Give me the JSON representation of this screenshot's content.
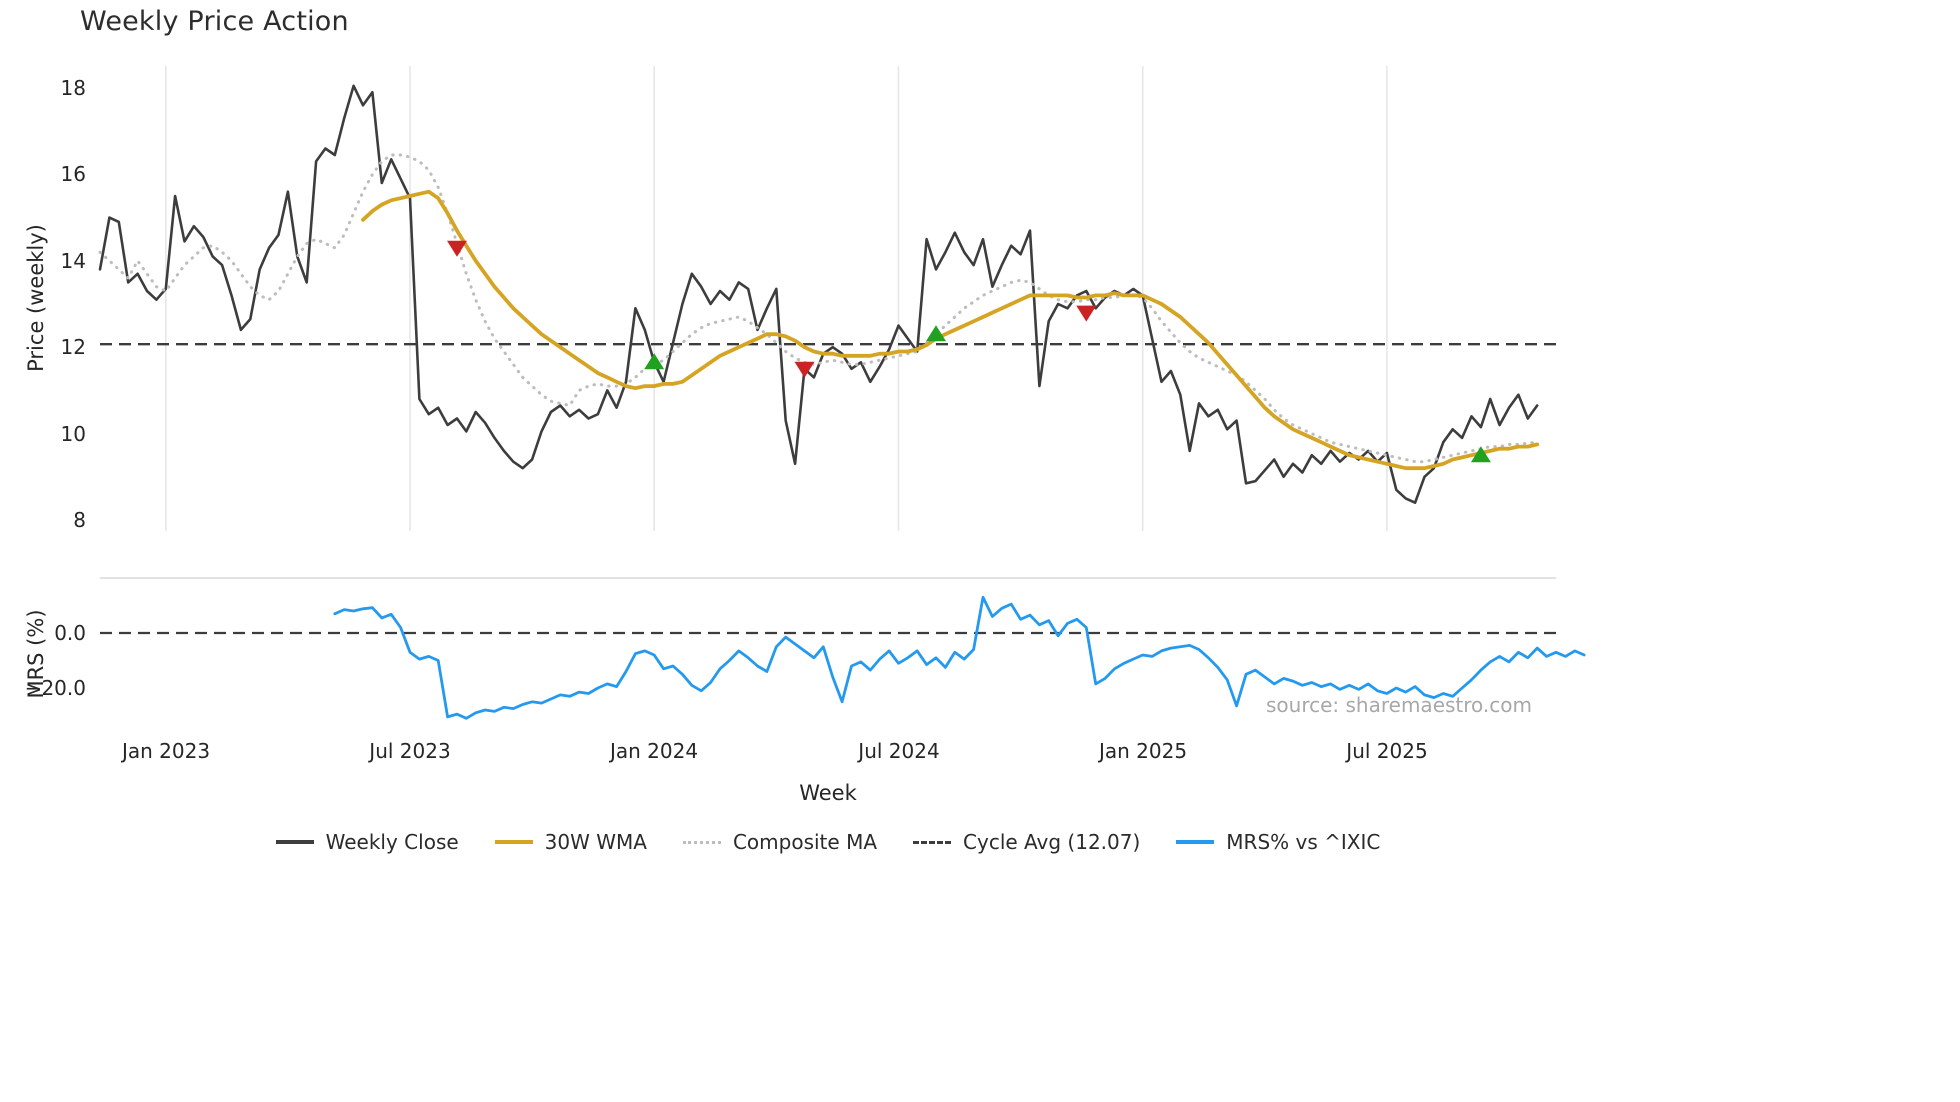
{
  "title": "Weekly Price Action",
  "axes": {
    "price": {
      "label": "Price (weekly)",
      "ticks": [
        "18",
        "16",
        "14",
        "12",
        "10",
        "8"
      ]
    },
    "mrs": {
      "label": "MRS (%)",
      "ticks": [
        "0.0",
        "−20.0"
      ]
    },
    "x": {
      "label": "Week",
      "ticks": [
        "Jan 2023",
        "Jul 2023",
        "Jan 2024",
        "Jul 2024",
        "Jan 2025",
        "Jul 2025"
      ],
      "tick_weeks": [
        7,
        33,
        59,
        85,
        111,
        137
      ]
    }
  },
  "legend": [
    {
      "label": "Weekly Close",
      "color": "#3d3d3d",
      "style": "solid"
    },
    {
      "label": "30W WMA",
      "color": "#d6a423",
      "style": "solid"
    },
    {
      "label": "Composite MA",
      "color": "#bdbdbd",
      "style": "dotted"
    },
    {
      "label": "Cycle Avg (12.07)",
      "color": "#3d3d3d",
      "style": "dashed"
    },
    {
      "label": "MRS% vs ^IXIC",
      "color": "#2499f0",
      "style": "solid"
    }
  ],
  "source": "source: sharemaestro.com",
  "chart_data": {
    "type": "line",
    "title": "Weekly Price Action",
    "xlabel": "Week",
    "x_axis": {
      "unit": "week_index",
      "domain": [
        0,
        155
      ],
      "tick_weeks": [
        7,
        33,
        59,
        85,
        111,
        137
      ],
      "tick_labels": [
        "Jan 2023",
        "Jul 2023",
        "Jan 2024",
        "Jul 2024",
        "Jan 2025",
        "Jul 2025"
      ]
    },
    "price_axis": {
      "label": "Price (weekly)",
      "tick_values": [
        18,
        16,
        14,
        12,
        10,
        8
      ],
      "ylim": [
        7.75,
        18.5
      ]
    },
    "mrs_axis": {
      "label": "MRS (%)",
      "tick_values": [
        0,
        -20
      ],
      "ylim": [
        -35.6,
        20
      ]
    },
    "cycle_avg": 12.07,
    "grid": "vertical-only",
    "legend_position": "bottom-center",
    "series": [
      {
        "id": "weekly-close-line",
        "name": "Weekly Close",
        "panel": "price",
        "color": "#3d3d3d",
        "style": "solid",
        "width": 2.6,
        "start_week": 0,
        "values": [
          13.8,
          15.0,
          14.9,
          13.5,
          13.7,
          13.3,
          13.1,
          13.35,
          15.5,
          14.45,
          14.8,
          14.55,
          14.1,
          13.9,
          13.2,
          12.4,
          12.65,
          13.8,
          14.3,
          14.6,
          15.6,
          14.1,
          13.5,
          16.3,
          16.6,
          16.45,
          17.3,
          18.05,
          17.6,
          17.9,
          15.8,
          16.35,
          15.9,
          15.45,
          10.8,
          10.45,
          10.6,
          10.2,
          10.35,
          10.05,
          10.5,
          10.25,
          9.9,
          9.6,
          9.35,
          9.2,
          9.4,
          10.05,
          10.5,
          10.65,
          10.4,
          10.55,
          10.35,
          10.45,
          11.0,
          10.6,
          11.2,
          12.9,
          12.4,
          11.65,
          11.2,
          12.1,
          13.0,
          13.7,
          13.4,
          13.0,
          13.3,
          13.1,
          13.5,
          13.35,
          12.4,
          12.9,
          13.35,
          10.3,
          9.3,
          11.5,
          11.3,
          11.85,
          12.0,
          11.85,
          11.5,
          11.65,
          11.2,
          11.55,
          11.95,
          12.5,
          12.2,
          11.9,
          14.5,
          13.8,
          14.2,
          14.65,
          14.2,
          13.9,
          14.5,
          13.4,
          13.9,
          14.35,
          14.15,
          14.7,
          11.1,
          12.6,
          13.0,
          12.9,
          13.2,
          13.3,
          12.9,
          13.15,
          13.3,
          13.2,
          13.35,
          13.2,
          12.2,
          11.2,
          11.45,
          10.9,
          9.6,
          10.7,
          10.4,
          10.55,
          10.1,
          10.3,
          8.85,
          8.9,
          9.15,
          9.4,
          9.0,
          9.3,
          9.1,
          9.5,
          9.3,
          9.6,
          9.35,
          9.55,
          9.4,
          9.6,
          9.35,
          9.55,
          8.7,
          8.5,
          8.4,
          9.0,
          9.2,
          9.8,
          10.1,
          9.9,
          10.4,
          10.15,
          10.8,
          10.2,
          10.6,
          10.9,
          10.35,
          10.65
        ]
      },
      {
        "id": "composite-ma-line",
        "name": "Composite MA",
        "panel": "price",
        "color": "#bdbdbd",
        "style": "dotted",
        "width": 3.0,
        "start_week": 0,
        "values": [
          14.2,
          14.0,
          13.8,
          13.6,
          14.0,
          13.7,
          13.4,
          13.3,
          13.6,
          13.9,
          14.1,
          14.3,
          14.35,
          14.2,
          14.0,
          13.7,
          13.4,
          13.2,
          13.1,
          13.3,
          13.7,
          14.1,
          14.4,
          14.5,
          14.4,
          14.3,
          14.6,
          15.1,
          15.6,
          16.0,
          16.3,
          16.45,
          16.45,
          16.4,
          16.3,
          16.1,
          15.7,
          15.1,
          14.4,
          13.7,
          13.1,
          12.6,
          12.2,
          11.9,
          11.6,
          11.3,
          11.1,
          10.9,
          10.75,
          10.7,
          10.65,
          11.0,
          11.1,
          11.15,
          11.1,
          11.1,
          11.15,
          11.3,
          11.5,
          11.6,
          11.7,
          11.9,
          12.1,
          12.3,
          12.45,
          12.55,
          12.6,
          12.65,
          12.7,
          12.6,
          12.45,
          12.3,
          12.1,
          11.9,
          11.75,
          11.65,
          11.6,
          11.65,
          11.7,
          11.65,
          11.6,
          11.6,
          11.65,
          11.7,
          11.75,
          11.8,
          11.85,
          11.9,
          12.1,
          12.3,
          12.5,
          12.7,
          12.9,
          13.05,
          13.2,
          13.3,
          13.4,
          13.5,
          13.55,
          13.5,
          13.35,
          13.2,
          13.1,
          13.05,
          13.05,
          13.1,
          13.1,
          13.15,
          13.15,
          13.2,
          13.2,
          13.15,
          12.9,
          12.6,
          12.35,
          12.1,
          11.9,
          11.75,
          11.65,
          11.55,
          11.45,
          11.35,
          11.2,
          11.0,
          10.8,
          10.55,
          10.35,
          10.2,
          10.1,
          10.0,
          9.9,
          9.8,
          9.75,
          9.7,
          9.65,
          9.6,
          9.55,
          9.5,
          9.45,
          9.4,
          9.35,
          9.35,
          9.4,
          9.45,
          9.5,
          9.55,
          9.6,
          9.65,
          9.7,
          9.7,
          9.75,
          9.75,
          9.78,
          9.8
        ]
      },
      {
        "id": "wma-30w-line",
        "name": "30W WMA",
        "panel": "price",
        "color": "#d6a423",
        "style": "solid",
        "width": 3.8,
        "start_week": 28,
        "values": [
          14.95,
          15.15,
          15.3,
          15.4,
          15.45,
          15.5,
          15.55,
          15.6,
          15.45,
          15.1,
          14.7,
          14.35,
          14.0,
          13.7,
          13.4,
          13.15,
          12.9,
          12.7,
          12.5,
          12.3,
          12.15,
          12.0,
          11.85,
          11.7,
          11.55,
          11.4,
          11.3,
          11.2,
          11.1,
          11.05,
          11.1,
          11.1,
          11.15,
          11.15,
          11.2,
          11.35,
          11.5,
          11.65,
          11.8,
          11.9,
          12.0,
          12.1,
          12.2,
          12.3,
          12.3,
          12.25,
          12.15,
          12.0,
          11.9,
          11.85,
          11.85,
          11.8,
          11.8,
          11.8,
          11.8,
          11.85,
          11.85,
          11.9,
          11.9,
          11.95,
          12.05,
          12.2,
          12.3,
          12.4,
          12.5,
          12.6,
          12.7,
          12.8,
          12.9,
          13.0,
          13.1,
          13.2,
          13.2,
          13.2,
          13.2,
          13.2,
          13.15,
          13.15,
          13.2,
          13.2,
          13.25,
          13.2,
          13.2,
          13.2,
          13.1,
          13.0,
          12.85,
          12.7,
          12.5,
          12.3,
          12.1,
          11.85,
          11.6,
          11.35,
          11.1,
          10.85,
          10.6,
          10.4,
          10.25,
          10.1,
          10.0,
          9.9,
          9.8,
          9.7,
          9.6,
          9.5,
          9.45,
          9.4,
          9.35,
          9.3,
          9.25,
          9.2,
          9.2,
          9.2,
          9.25,
          9.3,
          9.4,
          9.45,
          9.5,
          9.55,
          9.6,
          9.65,
          9.65,
          9.7,
          9.7,
          9.75
        ]
      },
      {
        "id": "mrs-line",
        "name": "MRS% vs ^IXIC",
        "panel": "mrs",
        "color": "#2499f0",
        "style": "solid",
        "width": 2.8,
        "start_week": 25,
        "values": [
          7,
          8.5,
          8,
          8.8,
          9.2,
          5.5,
          6.8,
          2,
          -7,
          -9.5,
          -8.5,
          -10,
          -30.5,
          -29.5,
          -31,
          -29,
          -28,
          -28.5,
          -27,
          -27.5,
          -26,
          -25,
          -25.5,
          -24,
          -22.5,
          -23,
          -21.5,
          -22,
          -20,
          -18.5,
          -19.5,
          -14,
          -7.5,
          -6.5,
          -8,
          -13,
          -12,
          -15,
          -19,
          -21,
          -18,
          -13,
          -10,
          -6.5,
          -9,
          -12,
          -14,
          -5,
          -1.5,
          -4,
          -6.5,
          -9,
          -5,
          -16,
          -25,
          -12,
          -10.5,
          -13.5,
          -9.5,
          -6.5,
          -11,
          -9,
          -6.5,
          -11.5,
          -9,
          -12.5,
          -7,
          -9.5,
          -6,
          13,
          6,
          9,
          10.5,
          5,
          6.5,
          3,
          4.5,
          -1,
          3.5,
          5,
          2,
          -18.5,
          -16.5,
          -13,
          -11,
          -9.5,
          -8,
          -8.5,
          -6.5,
          -5.5,
          -5,
          -4.5,
          -6,
          -9,
          -12.5,
          -17,
          -26.5,
          -15,
          -13.5,
          -16,
          -18.5,
          -16.5,
          -17.5,
          -19,
          -18,
          -19.5,
          -18.5,
          -20.5,
          -19,
          -20.5,
          -18.5,
          -21,
          -22,
          -20,
          -21.5,
          -19.5,
          -22.5,
          -23.5,
          -22,
          -23,
          -20,
          -17,
          -13.5,
          -10.5,
          -8.5,
          -10.5,
          -7,
          -9,
          -5.5,
          -8.5,
          -7,
          -8.5,
          -6.5,
          -8
        ]
      }
    ],
    "markers": {
      "sell_color": "#cb2222",
      "buy_color": "#21a121",
      "sell": [
        {
          "week": 38,
          "price": 14.3
        },
        {
          "week": 75,
          "price": 11.5
        },
        {
          "week": 105,
          "price": 12.8
        }
      ],
      "buy": [
        {
          "week": 59,
          "price": 11.65
        },
        {
          "week": 89,
          "price": 12.3
        },
        {
          "week": 147,
          "price": 9.5
        }
      ]
    }
  }
}
